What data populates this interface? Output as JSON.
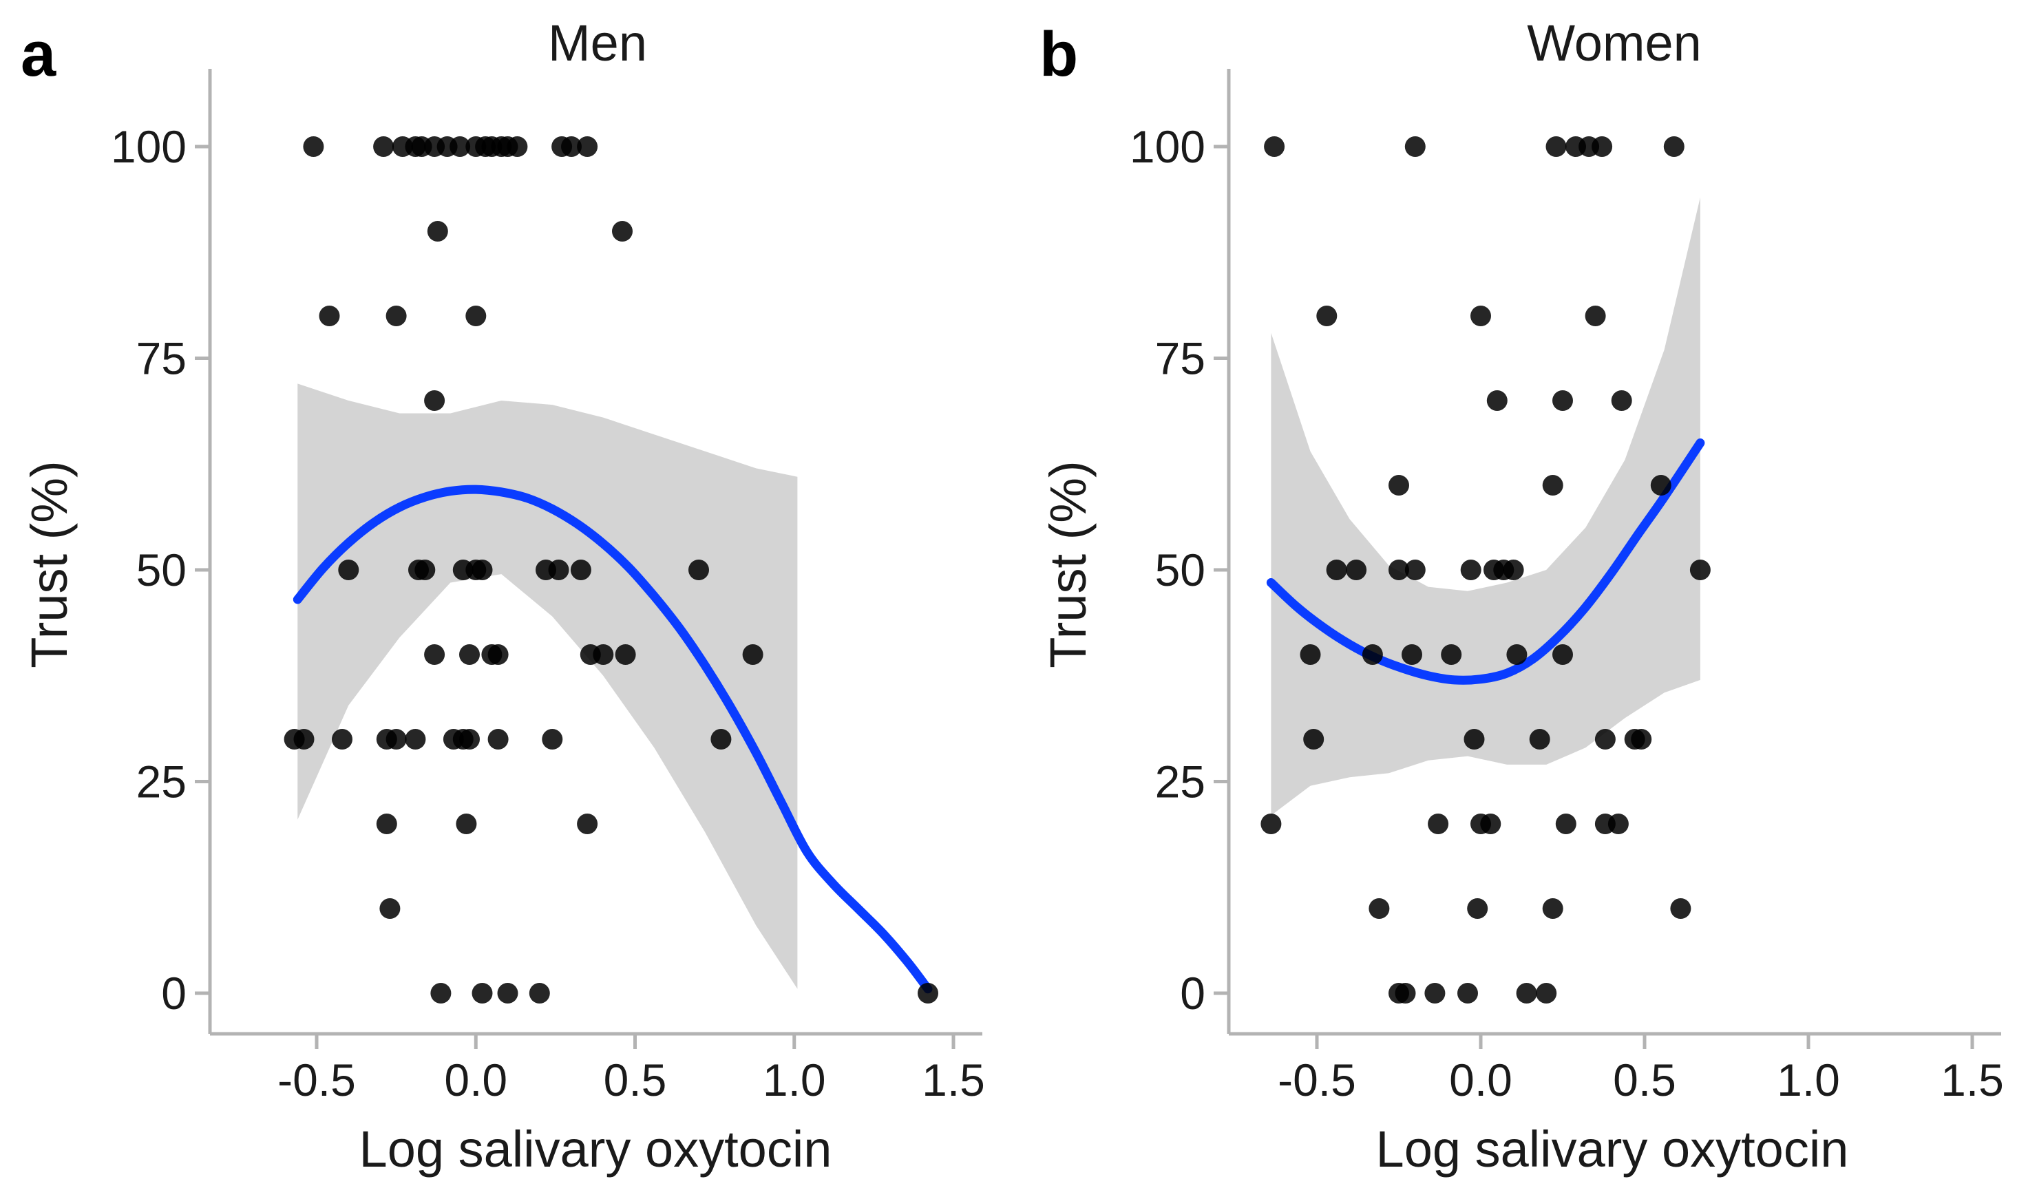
{
  "chart_data": [
    {
      "type": "scatter",
      "panel_letter": "a",
      "title": "Men",
      "xlabel": "Log salivary oxytocin",
      "ylabel": "Trust (%)",
      "xlim": [
        -0.75,
        1.6
      ],
      "ylim": [
        -5,
        105
      ],
      "xticks": [
        -0.5,
        0.0,
        0.5,
        1.0,
        1.5
      ],
      "xtick_labels": [
        "-0.5",
        "0.0",
        "0.5",
        "1.0",
        "1.5"
      ],
      "yticks": [
        0,
        25,
        50,
        75,
        100
      ],
      "ytick_labels": [
        "0",
        "25",
        "50",
        "75",
        "100"
      ],
      "points": [
        [
          -0.51,
          100
        ],
        [
          -0.29,
          100
        ],
        [
          -0.23,
          100
        ],
        [
          -0.19,
          100
        ],
        [
          -0.17,
          100
        ],
        [
          -0.13,
          100
        ],
        [
          -0.09,
          100
        ],
        [
          -0.05,
          100
        ],
        [
          0.0,
          100
        ],
        [
          0.03,
          100
        ],
        [
          0.05,
          100
        ],
        [
          0.08,
          100
        ],
        [
          0.1,
          100
        ],
        [
          0.13,
          100
        ],
        [
          0.27,
          100
        ],
        [
          0.3,
          100
        ],
        [
          0.35,
          100
        ],
        [
          -0.12,
          90
        ],
        [
          0.46,
          90
        ],
        [
          -0.46,
          80
        ],
        [
          -0.25,
          80
        ],
        [
          0.0,
          80
        ],
        [
          -0.13,
          70
        ],
        [
          -0.4,
          50
        ],
        [
          -0.18,
          50
        ],
        [
          -0.16,
          50
        ],
        [
          -0.04,
          50
        ],
        [
          0.0,
          50
        ],
        [
          0.02,
          50
        ],
        [
          0.22,
          50
        ],
        [
          0.26,
          50
        ],
        [
          0.33,
          50
        ],
        [
          0.7,
          50
        ],
        [
          -0.13,
          40
        ],
        [
          -0.02,
          40
        ],
        [
          0.05,
          40
        ],
        [
          0.07,
          40
        ],
        [
          0.36,
          40
        ],
        [
          0.4,
          40
        ],
        [
          0.47,
          40
        ],
        [
          0.87,
          40
        ],
        [
          -0.57,
          30
        ],
        [
          -0.54,
          30
        ],
        [
          -0.42,
          30
        ],
        [
          -0.28,
          30
        ],
        [
          -0.25,
          30
        ],
        [
          -0.19,
          30
        ],
        [
          -0.07,
          30
        ],
        [
          -0.04,
          30
        ],
        [
          -0.02,
          30
        ],
        [
          0.07,
          30
        ],
        [
          0.24,
          30
        ],
        [
          0.77,
          30
        ],
        [
          -0.28,
          20
        ],
        [
          -0.03,
          20
        ],
        [
          0.35,
          20
        ],
        [
          -0.27,
          10
        ],
        [
          -0.11,
          0
        ],
        [
          0.02,
          0
        ],
        [
          0.1,
          0
        ],
        [
          0.2,
          0
        ],
        [
          1.42,
          0
        ]
      ],
      "fit_x": [
        -0.56,
        -0.48,
        -0.4,
        -0.32,
        -0.24,
        -0.16,
        -0.08,
        0.0,
        0.08,
        0.16,
        0.24,
        0.32,
        0.4,
        0.48,
        0.56,
        0.64,
        0.72,
        0.8,
        0.88,
        0.96,
        1.04,
        1.12,
        1.2,
        1.28,
        1.36,
        1.42
      ],
      "fit_y": [
        46.5,
        50.2,
        53.2,
        55.6,
        57.4,
        58.6,
        59.3,
        59.5,
        59.2,
        58.5,
        57.2,
        55.4,
        53.1,
        50.3,
        46.9,
        43.1,
        38.7,
        33.8,
        28.4,
        22.5,
        16.7,
        13.0,
        10.0,
        7.0,
        3.5,
        0.5
      ],
      "band_x": [
        -0.56,
        -0.4,
        -0.24,
        -0.08,
        0.08,
        0.24,
        0.4,
        0.56,
        0.72,
        0.88,
        1.01
      ],
      "band_lower": [
        20.5,
        34,
        42,
        48.5,
        49.5,
        44.5,
        37.5,
        29,
        19,
        8,
        0.5
      ],
      "band_upper": [
        72,
        70,
        68.5,
        68.5,
        70,
        69.5,
        68,
        66,
        64,
        62,
        61
      ]
    },
    {
      "type": "scatter",
      "panel_letter": "b",
      "title": "Women",
      "xlabel": "Log salivary oxytocin",
      "ylabel": "Trust (%)",
      "xlim": [
        -0.8,
        1.6
      ],
      "ylim": [
        -5,
        105
      ],
      "xticks": [
        -0.5,
        0.0,
        0.5,
        1.0,
        1.5
      ],
      "xtick_labels": [
        "-0.5",
        "0.0",
        "0.5",
        "1.0",
        "1.5"
      ],
      "yticks": [
        0,
        25,
        50,
        75,
        100
      ],
      "ytick_labels": [
        "0",
        "25",
        "50",
        "75",
        "100"
      ],
      "points": [
        [
          -0.63,
          100
        ],
        [
          -0.2,
          100
        ],
        [
          0.23,
          100
        ],
        [
          0.29,
          100
        ],
        [
          0.33,
          100
        ],
        [
          0.37,
          100
        ],
        [
          0.59,
          100
        ],
        [
          -0.47,
          80
        ],
        [
          0.0,
          80
        ],
        [
          0.35,
          80
        ],
        [
          0.05,
          70
        ],
        [
          0.25,
          70
        ],
        [
          0.43,
          70
        ],
        [
          -0.25,
          60
        ],
        [
          0.22,
          60
        ],
        [
          0.55,
          60
        ],
        [
          -0.44,
          50
        ],
        [
          -0.38,
          50
        ],
        [
          -0.25,
          50
        ],
        [
          -0.2,
          50
        ],
        [
          -0.03,
          50
        ],
        [
          0.04,
          50
        ],
        [
          0.07,
          50
        ],
        [
          0.1,
          50
        ],
        [
          0.67,
          50
        ],
        [
          -0.52,
          40
        ],
        [
          -0.33,
          40
        ],
        [
          -0.21,
          40
        ],
        [
          -0.09,
          40
        ],
        [
          0.11,
          40
        ],
        [
          0.25,
          40
        ],
        [
          -0.51,
          30
        ],
        [
          -0.02,
          30
        ],
        [
          0.18,
          30
        ],
        [
          0.38,
          30
        ],
        [
          0.47,
          30
        ],
        [
          0.49,
          30
        ],
        [
          -0.64,
          20
        ],
        [
          -0.13,
          20
        ],
        [
          0.0,
          20
        ],
        [
          0.03,
          20
        ],
        [
          0.26,
          20
        ],
        [
          0.38,
          20
        ],
        [
          0.42,
          20
        ],
        [
          -0.31,
          10
        ],
        [
          -0.01,
          10
        ],
        [
          0.22,
          10
        ],
        [
          0.61,
          10
        ],
        [
          -0.25,
          0
        ],
        [
          -0.23,
          0
        ],
        [
          -0.14,
          0
        ],
        [
          -0.04,
          0
        ],
        [
          0.14,
          0
        ],
        [
          0.2,
          0
        ]
      ],
      "fit_x": [
        -0.64,
        -0.56,
        -0.48,
        -0.4,
        -0.32,
        -0.24,
        -0.16,
        -0.08,
        0.0,
        0.08,
        0.16,
        0.24,
        0.32,
        0.4,
        0.48,
        0.56,
        0.67
      ],
      "fit_y": [
        48.5,
        45.6,
        43.2,
        41.2,
        39.6,
        38.4,
        37.5,
        37.0,
        37.1,
        37.8,
        39.5,
        42.2,
        45.6,
        49.7,
        54.2,
        58.6,
        65.0
      ],
      "band_x": [
        -0.64,
        -0.52,
        -0.4,
        -0.28,
        -0.16,
        -0.04,
        0.08,
        0.2,
        0.32,
        0.44,
        0.56,
        0.67
      ],
      "band_lower": [
        21,
        24.5,
        25.5,
        26,
        27.5,
        28,
        27,
        27,
        29,
        32.5,
        35.5,
        37
      ],
      "band_upper": [
        78,
        64,
        56,
        50.5,
        48,
        47.5,
        48.5,
        50,
        55,
        63,
        76,
        94
      ]
    }
  ]
}
